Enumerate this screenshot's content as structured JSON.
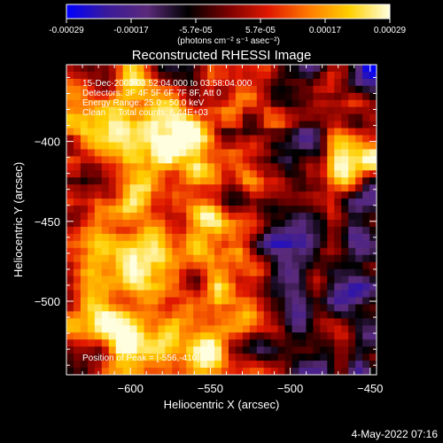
{
  "colorbar": {
    "ticks": [
      "-0.00029",
      "-0.00017",
      "-5.7e-05",
      "5.7e-05",
      "0.00017",
      "0.00029"
    ],
    "unit_label": "(photons cm⁻² s⁻¹ asec⁻²)",
    "stops": [
      "#0000ff",
      "#3a1a9a",
      "#5a2a7a",
      "#000000",
      "#7a0000",
      "#e01800",
      "#ff7a00",
      "#ffd000",
      "#ffffe0"
    ]
  },
  "chart_data": {
    "type": "heatmap",
    "title": "Reconstructed RHESSI Image",
    "xlabel": "Heliocentric X (arcsec)",
    "ylabel": "Heliocentric Y (arcsec)",
    "xlim": [
      -640,
      -446
    ],
    "ylim": [
      -546,
      -352
    ],
    "x_ticks": [
      -600,
      -550,
      -500,
      -450
    ],
    "y_ticks": [
      -400,
      -450,
      -500
    ],
    "x_tick_labels": [
      "−600",
      "−550",
      "−500",
      "−450"
    ],
    "y_tick_labels": [
      "−400",
      "−450",
      "−500"
    ],
    "value_range": [
      -0.00029,
      0.00029
    ],
    "annotations": [
      "15-Dec-2002 03:52:04.000 to 03:58:04.000",
      "Detectors: 3F 4F 5F 6F 7F 8F, Att 0",
      "Energy Range: 25.0 - 50.0 keV",
      "Clean     Total counts: 6.44E+03"
    ],
    "peak_label": "Position of Peak = [-556,-410]",
    "peak": [
      -556,
      -410
    ]
  },
  "footer": {
    "date": "4-May-2022 07:16"
  }
}
